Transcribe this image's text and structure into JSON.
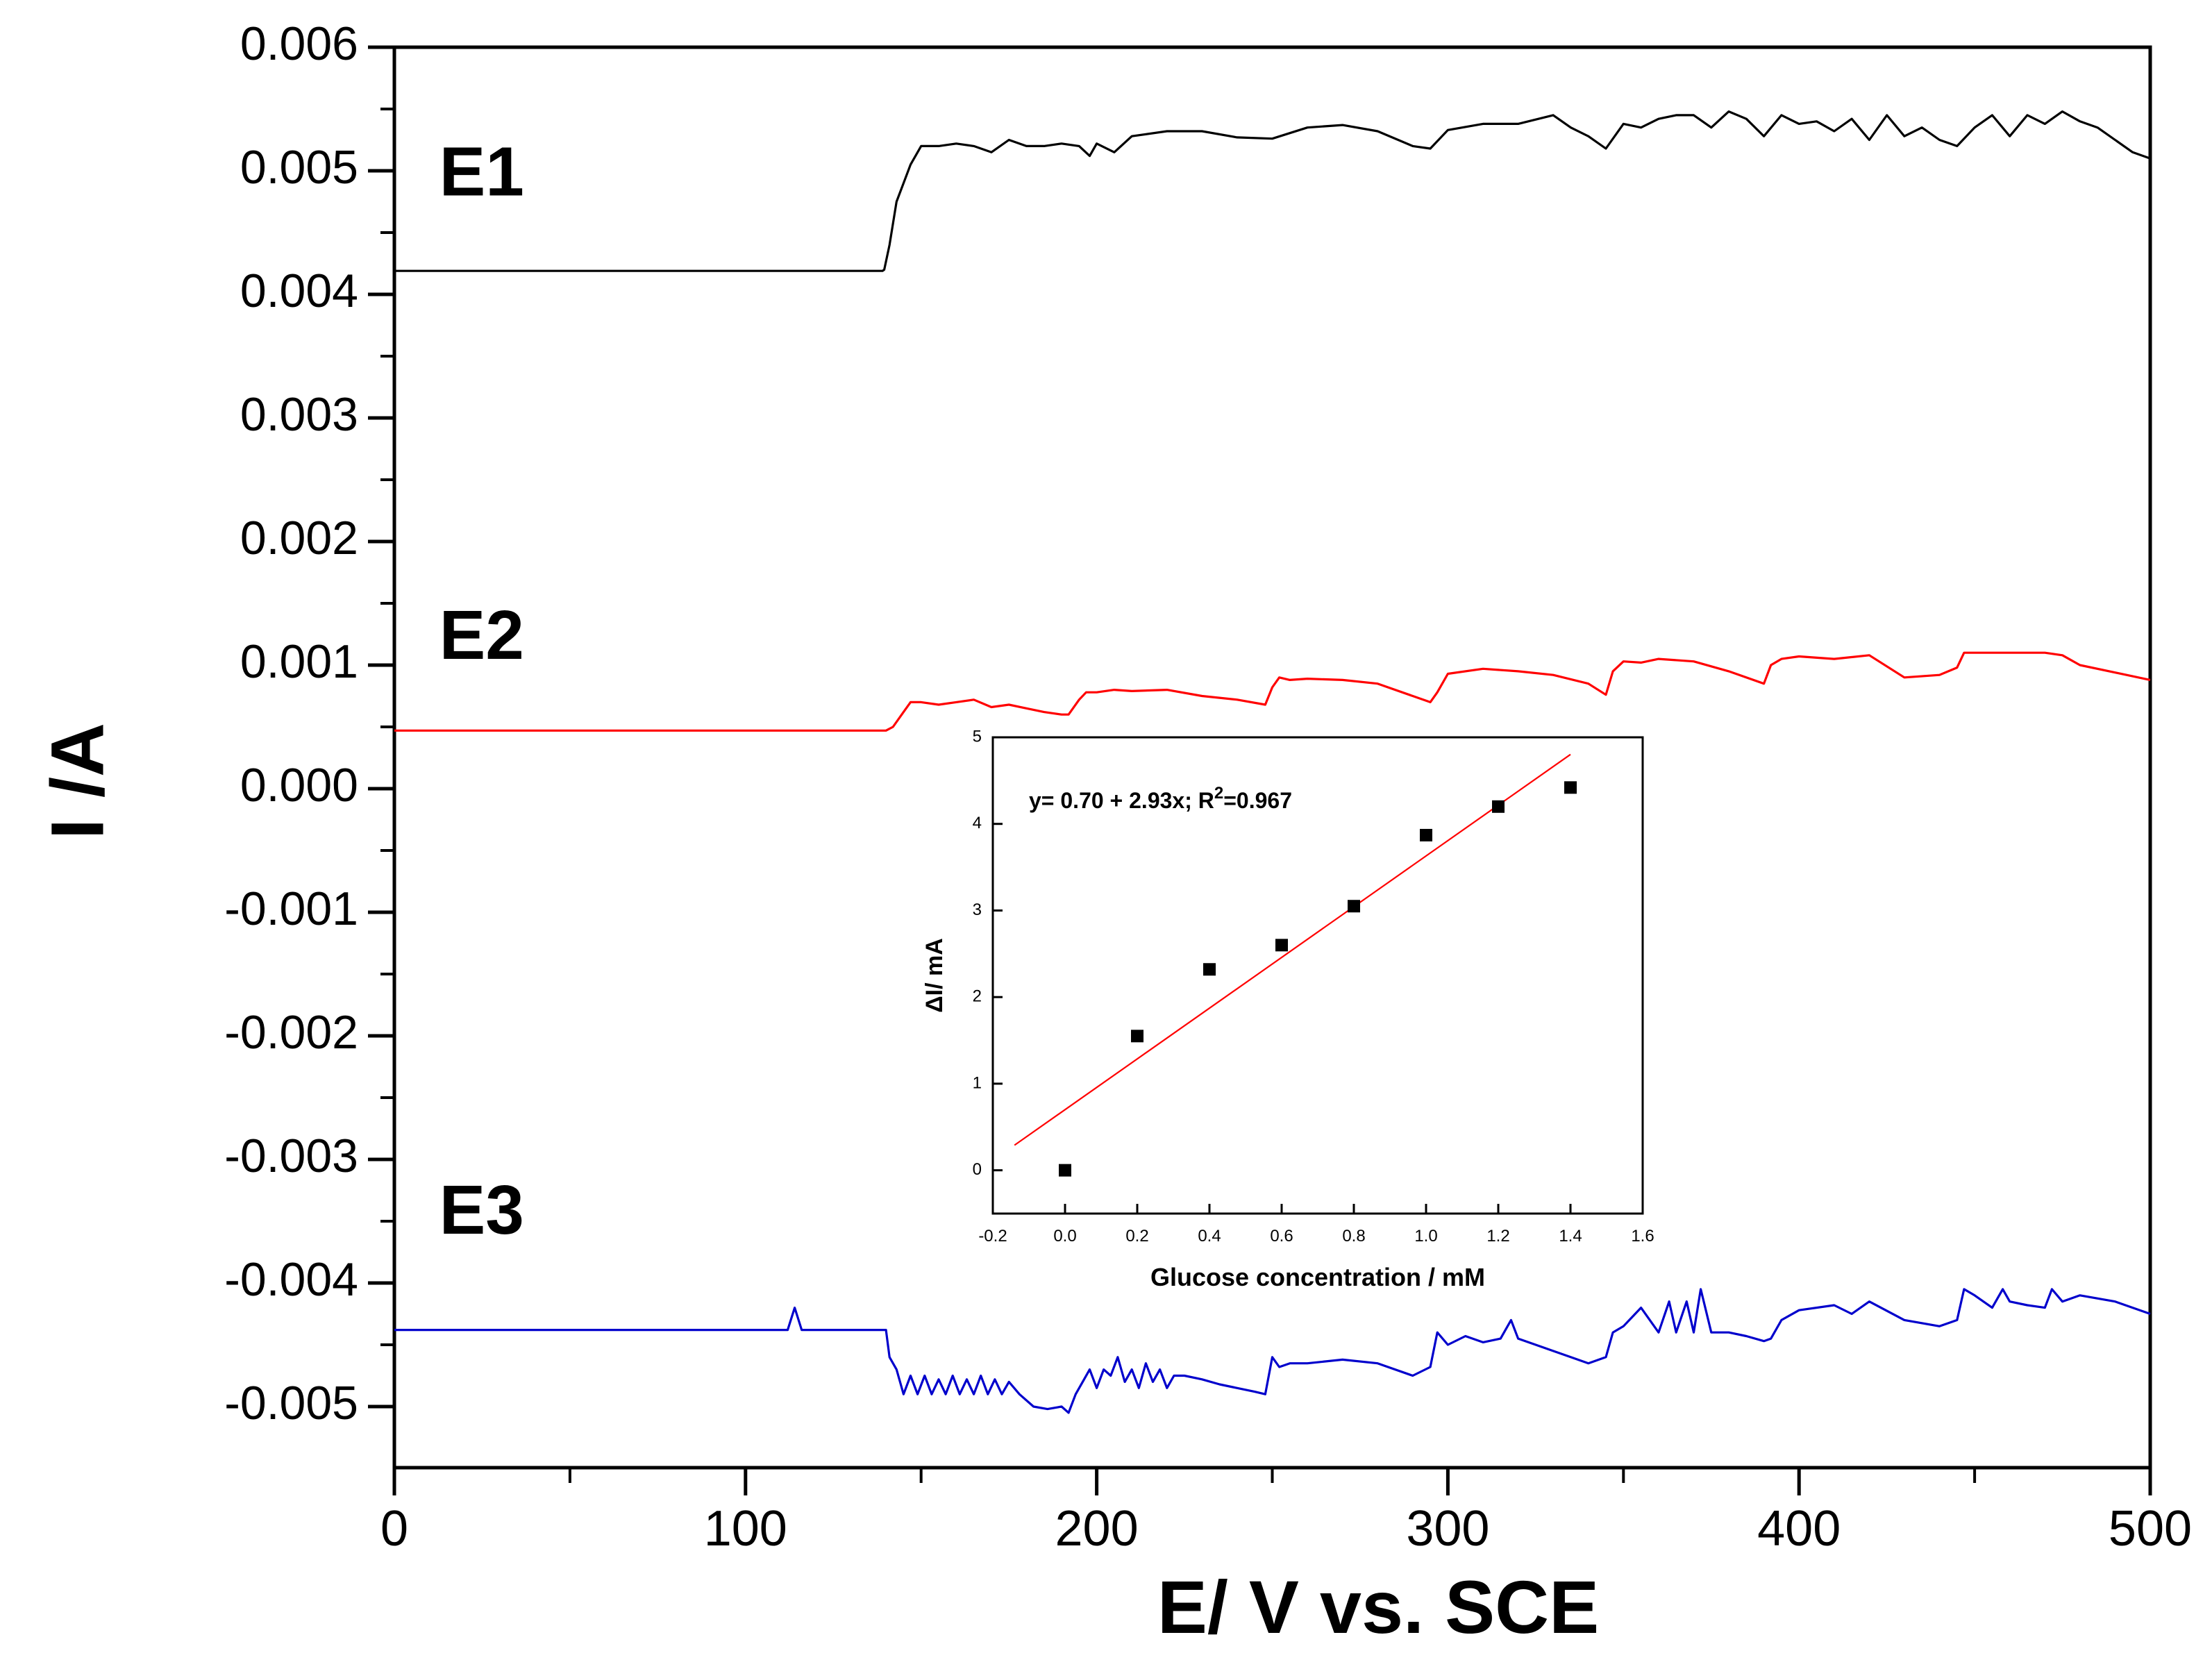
{
  "chart_data": [
    {
      "type": "line",
      "xlabel": "E/ V vs. SCE",
      "ylabel": "I /A",
      "xlim": [
        0,
        500
      ],
      "ylim": [
        -0.0055,
        0.006
      ],
      "x_ticks": [
        0,
        100,
        200,
        300,
        400,
        500
      ],
      "x_tick_labels": [
        "0",
        "100",
        "200",
        "300",
        "400",
        "500"
      ],
      "y_ticks": [
        0.006,
        0.005,
        0.004,
        0.003,
        0.002,
        0.001,
        0.0,
        -0.001,
        -0.002,
        -0.003,
        -0.004,
        -0.005
      ],
      "y_tick_labels": [
        "0.006",
        "0.005",
        "0.004",
        "0.003",
        "0.002",
        "0.001",
        "0.000",
        "-0.001",
        "-0.002",
        "-0.003",
        "-0.004",
        "-0.005"
      ],
      "grid": false,
      "series": [
        {
          "name": "E1",
          "label_at": [
            10,
            0.0048
          ],
          "color": "#000000",
          "x": [
            0,
            139,
            139.5,
            141,
            143,
            145,
            147,
            150,
            155,
            160,
            165,
            170,
            175,
            180,
            185,
            190,
            195,
            198,
            200,
            205,
            210,
            220,
            230,
            240,
            250,
            260,
            270,
            280,
            290,
            295,
            300,
            310,
            320,
            330,
            335,
            340,
            345,
            350,
            355,
            360,
            365,
            370,
            375,
            380,
            385,
            390,
            395,
            400,
            405,
            410,
            415,
            420,
            425,
            430,
            435,
            440,
            445,
            450,
            455,
            460,
            465,
            470,
            475,
            480,
            485,
            490,
            495,
            500
          ],
          "y": [
            0.00419,
            0.00419,
            0.0042,
            0.0044,
            0.00475,
            0.0049,
            0.00505,
            0.0052,
            0.0052,
            0.00522,
            0.0052,
            0.00515,
            0.00525,
            0.0052,
            0.0052,
            0.00522,
            0.0052,
            0.00512,
            0.00522,
            0.00515,
            0.00528,
            0.00532,
            0.00532,
            0.00527,
            0.00526,
            0.00535,
            0.00537,
            0.00532,
            0.0052,
            0.00518,
            0.00533,
            0.00538,
            0.00538,
            0.00545,
            0.00535,
            0.00528,
            0.00518,
            0.00538,
            0.00535,
            0.00542,
            0.00545,
            0.00545,
            0.00535,
            0.00548,
            0.00542,
            0.00528,
            0.00545,
            0.00538,
            0.0054,
            0.00532,
            0.00542,
            0.00525,
            0.00545,
            0.00528,
            0.00535,
            0.00525,
            0.0052,
            0.00535,
            0.00545,
            0.00528,
            0.00545,
            0.00538,
            0.00548,
            0.0054,
            0.00535,
            0.00525,
            0.00515,
            0.0051
          ]
        },
        {
          "name": "E2",
          "label_at": [
            10,
            0.00105
          ],
          "color": "#ff0000",
          "x": [
            0,
            140,
            142,
            145,
            147,
            150,
            155,
            160,
            165,
            170,
            175,
            180,
            185,
            190,
            192,
            195,
            197,
            200,
            205,
            210,
            220,
            230,
            240,
            248,
            250,
            252,
            255,
            260,
            270,
            280,
            290,
            295,
            297,
            300,
            310,
            320,
            330,
            340,
            345,
            347,
            350,
            355,
            360,
            370,
            380,
            390,
            392,
            395,
            400,
            410,
            420,
            430,
            440,
            445,
            447,
            450,
            460,
            470,
            475,
            480,
            490,
            500
          ],
          "y": [
            0.00047,
            0.00047,
            0.0005,
            0.00062,
            0.0007,
            0.0007,
            0.00068,
            0.0007,
            0.00072,
            0.00066,
            0.00068,
            0.00065,
            0.00062,
            0.0006,
            0.0006,
            0.00072,
            0.00078,
            0.00078,
            0.0008,
            0.00079,
            0.0008,
            0.00075,
            0.00072,
            0.00068,
            0.00082,
            0.0009,
            0.00088,
            0.00089,
            0.00088,
            0.00085,
            0.00075,
            0.0007,
            0.00078,
            0.00093,
            0.00097,
            0.00095,
            0.00092,
            0.00085,
            0.00076,
            0.00095,
            0.00103,
            0.00102,
            0.00105,
            0.00103,
            0.00095,
            0.00085,
            0.001,
            0.00105,
            0.00107,
            0.00105,
            0.00108,
            0.0009,
            0.00092,
            0.00098,
            0.0011,
            0.0011,
            0.0011,
            0.0011,
            0.00108,
            0.001,
            0.00094,
            0.00088
          ]
        },
        {
          "name": "E3",
          "label_at": [
            10,
            -0.0036
          ],
          "color": "#0000cc",
          "x": [
            0,
            112,
            114,
            116,
            140,
            141,
            143,
            145,
            147,
            149,
            151,
            153,
            155,
            157,
            159,
            161,
            163,
            165,
            167,
            169,
            171,
            173,
            175,
            178,
            182,
            186,
            190,
            192,
            194,
            196,
            198,
            200,
            202,
            204,
            206,
            208,
            210,
            212,
            214,
            216,
            218,
            220,
            222,
            225,
            230,
            235,
            240,
            245,
            248,
            250,
            252,
            255,
            260,
            270,
            280,
            290,
            295,
            297,
            300,
            305,
            310,
            315,
            318,
            320,
            325,
            330,
            335,
            340,
            345,
            347,
            350,
            355,
            360,
            363,
            365,
            368,
            370,
            372,
            375,
            380,
            385,
            390,
            392,
            395,
            400,
            410,
            415,
            420,
            430,
            440,
            445,
            447,
            450,
            455,
            458,
            460,
            465,
            470,
            472,
            475,
            480,
            490,
            500
          ],
          "y": [
            -0.00438,
            -0.00438,
            -0.0042,
            -0.00438,
            -0.00438,
            -0.0046,
            -0.0047,
            -0.0049,
            -0.00475,
            -0.0049,
            -0.00475,
            -0.0049,
            -0.00478,
            -0.0049,
            -0.00475,
            -0.0049,
            -0.00478,
            -0.0049,
            -0.00475,
            -0.0049,
            -0.00478,
            -0.0049,
            -0.0048,
            -0.0049,
            -0.005,
            -0.00502,
            -0.005,
            -0.00505,
            -0.0049,
            -0.0048,
            -0.0047,
            -0.00485,
            -0.0047,
            -0.00475,
            -0.0046,
            -0.0048,
            -0.0047,
            -0.00485,
            -0.00465,
            -0.0048,
            -0.0047,
            -0.00485,
            -0.00475,
            -0.00475,
            -0.00478,
            -0.00482,
            -0.00485,
            -0.00488,
            -0.0049,
            -0.0046,
            -0.00468,
            -0.00465,
            -0.00465,
            -0.00462,
            -0.00465,
            -0.00475,
            -0.00468,
            -0.0044,
            -0.0045,
            -0.00443,
            -0.00448,
            -0.00445,
            -0.0043,
            -0.00445,
            -0.0045,
            -0.00455,
            -0.0046,
            -0.00465,
            -0.0046,
            -0.0044,
            -0.00435,
            -0.0042,
            -0.0044,
            -0.00415,
            -0.0044,
            -0.00415,
            -0.0044,
            -0.00405,
            -0.0044,
            -0.0044,
            -0.00443,
            -0.00447,
            -0.00445,
            -0.0043,
            -0.00422,
            -0.00418,
            -0.00425,
            -0.00415,
            -0.0043,
            -0.00435,
            -0.0043,
            -0.00405,
            -0.0041,
            -0.0042,
            -0.00405,
            -0.00415,
            -0.00418,
            -0.0042,
            -0.00405,
            -0.00415,
            -0.0041,
            -0.00415,
            -0.00425
          ]
        }
      ]
    },
    {
      "type": "scatter",
      "xlabel": "Glucose concentration / mM",
      "ylabel": "ΔI/ mA",
      "xlim": [
        -0.2,
        1.6
      ],
      "ylim": [
        -0.5,
        5
      ],
      "x_ticks": [
        -0.2,
        0.0,
        0.2,
        0.4,
        0.6,
        0.8,
        1.0,
        1.2,
        1.4,
        1.6
      ],
      "x_tick_labels": [
        "-0.2",
        "0.0",
        "0.2",
        "0.4",
        "0.6",
        "0.8",
        "1.0",
        "1.2",
        "1.4",
        "1.6"
      ],
      "y_ticks": [
        0,
        1,
        2,
        3,
        4,
        5
      ],
      "y_tick_labels": [
        "0",
        "1",
        "2",
        "3",
        "4",
        "5"
      ],
      "points": {
        "x": [
          0.0,
          0.2,
          0.4,
          0.6,
          0.8,
          1.0,
          1.2,
          1.4
        ],
        "y": [
          0.0,
          1.55,
          2.32,
          2.6,
          3.05,
          3.87,
          4.2,
          4.42
        ],
        "color": "#000000"
      },
      "fit": {
        "intercept": 0.7,
        "slope": 2.93,
        "x_range": [
          -0.14,
          1.4
        ],
        "color": "#ff0000"
      },
      "annotation": {
        "prefix": "y= 0.70 + 2.93x; R",
        "sup": "2",
        "suffix": "=0.967"
      }
    }
  ]
}
